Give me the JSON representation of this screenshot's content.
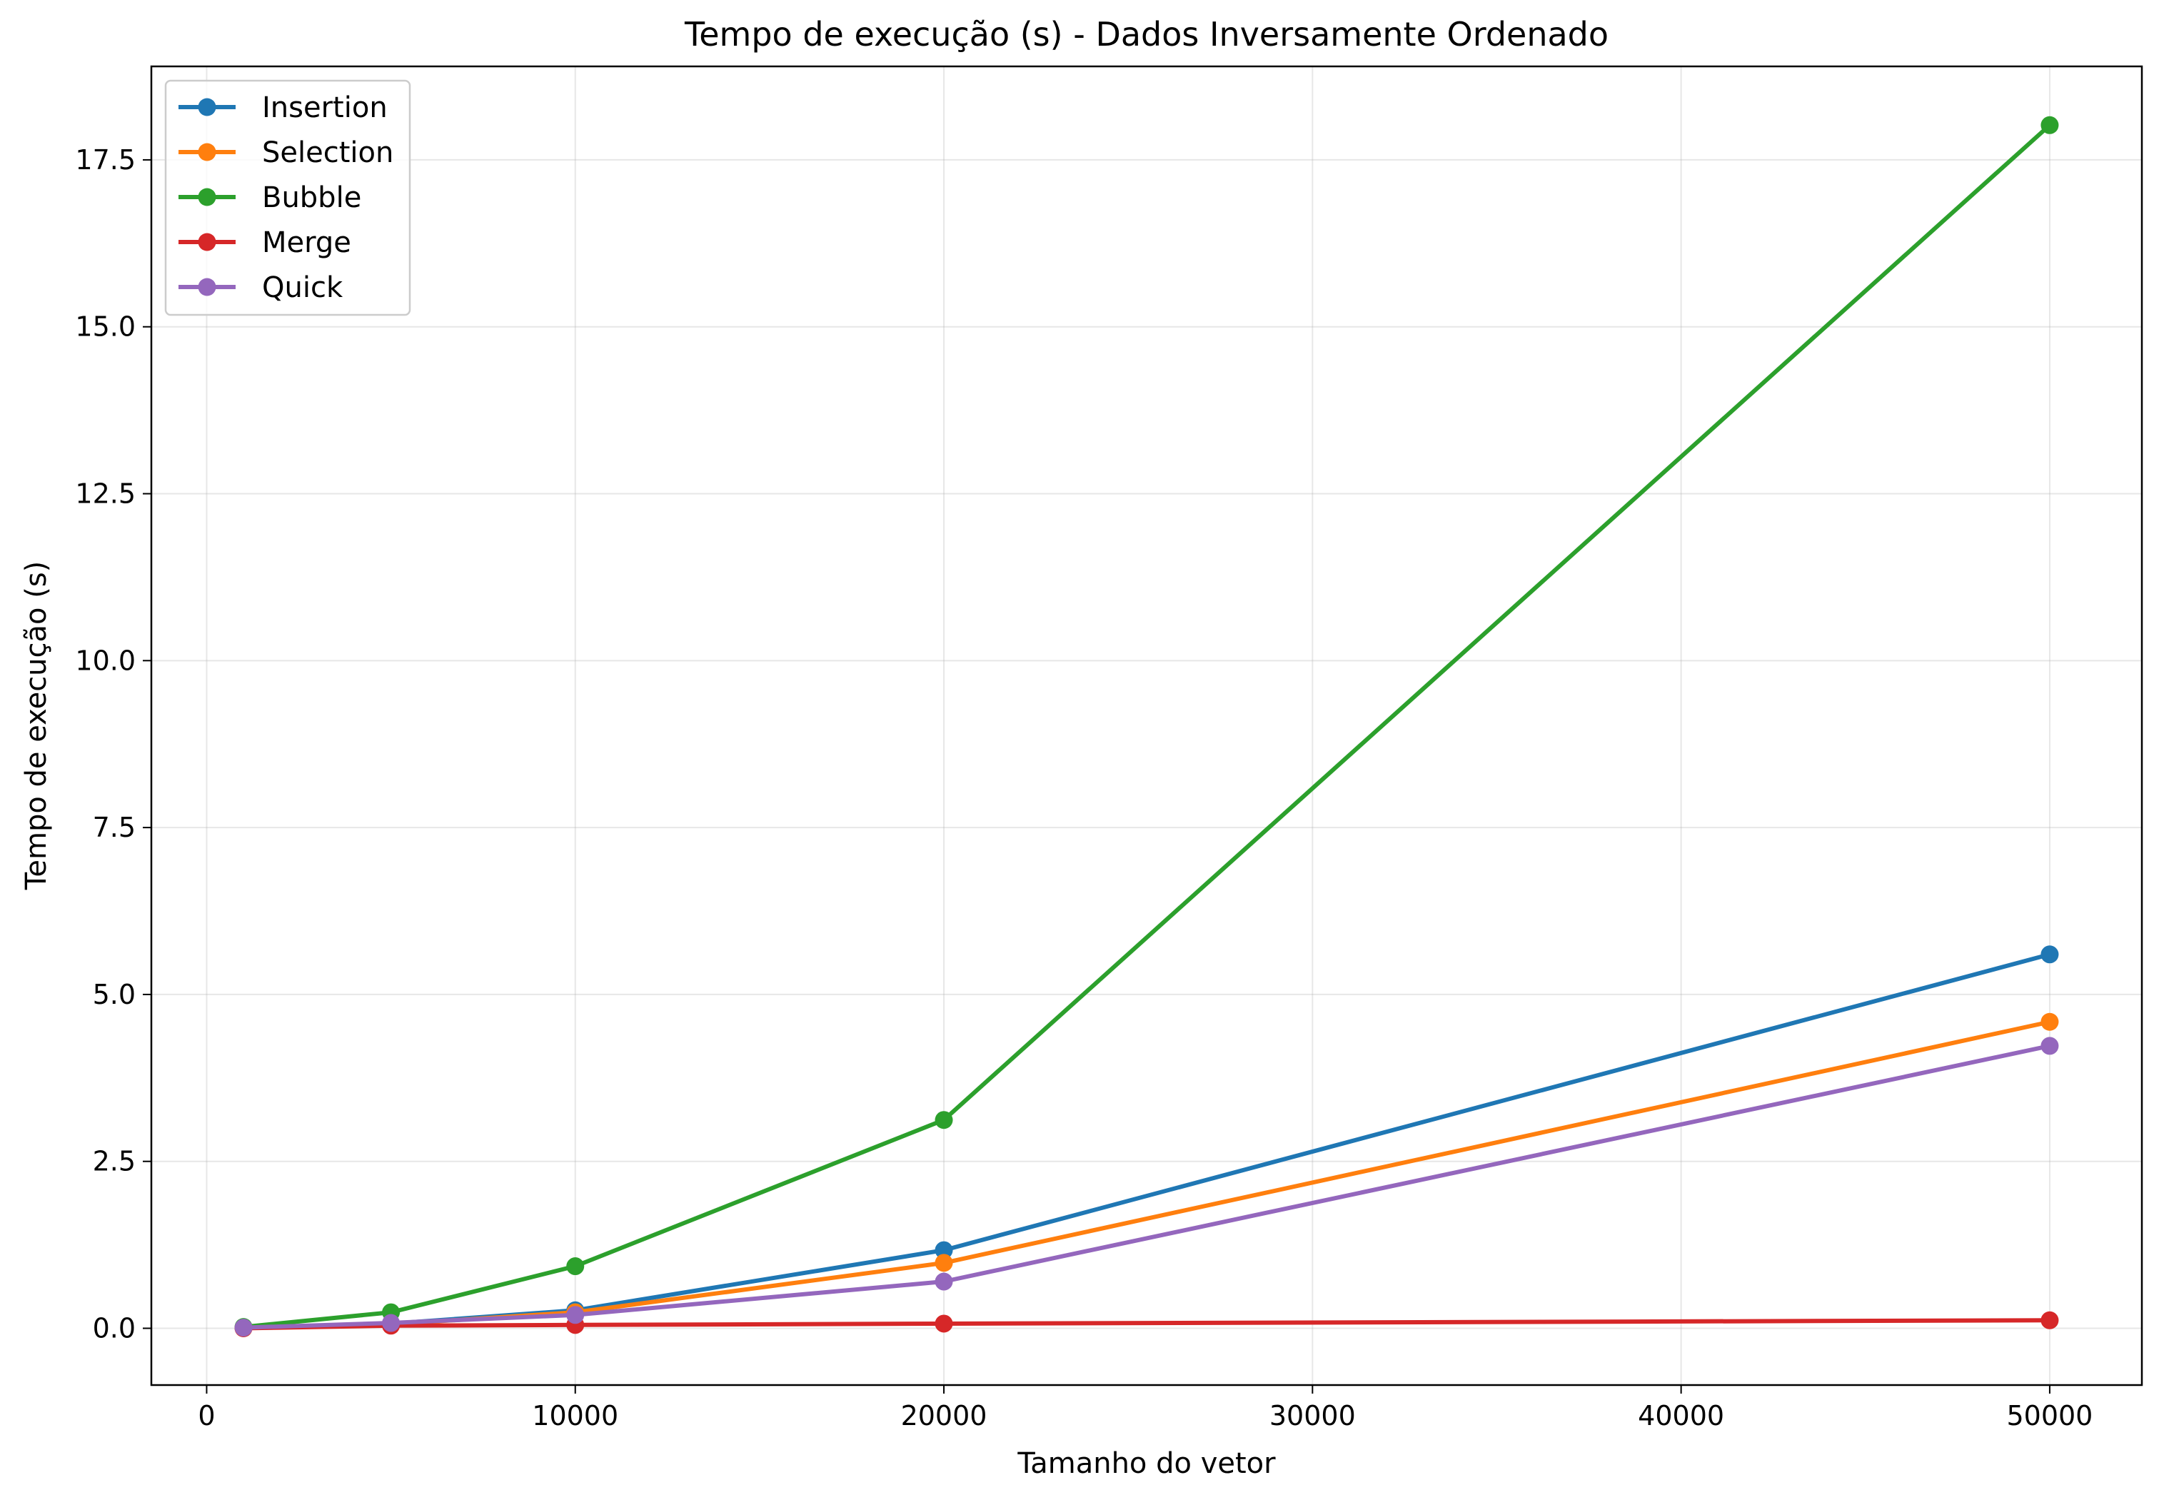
{
  "chart_data": {
    "type": "line",
    "title": "Tempo de execução (s) - Dados Inversamente Ordenado",
    "xlabel": "Tamanho do vetor",
    "ylabel": "Tempo de execução (s)",
    "x": [
      1000,
      5000,
      10000,
      20000,
      50000
    ],
    "xlim": [
      -1500,
      52500
    ],
    "ylim": [
      -0.85,
      18.9
    ],
    "xticks": [
      0,
      10000,
      20000,
      30000,
      40000,
      50000
    ],
    "xtick_labels": [
      "0",
      "10000",
      "20000",
      "30000",
      "40000",
      "50000"
    ],
    "yticks": [
      0.0,
      2.5,
      5.0,
      7.5,
      10.0,
      12.5,
      15.0,
      17.5
    ],
    "ytick_labels": [
      "0.0",
      "2.5",
      "5.0",
      "7.5",
      "10.0",
      "12.5",
      "15.0",
      "17.5"
    ],
    "grid": true,
    "legend_position": "top-left",
    "series": [
      {
        "name": "Insertion",
        "color": "#1f77b4",
        "values": [
          0.01,
          0.07,
          0.27,
          1.17,
          5.6
        ]
      },
      {
        "name": "Selection",
        "color": "#ff7f0e",
        "values": [
          0.01,
          0.06,
          0.24,
          0.98,
          4.59
        ]
      },
      {
        "name": "Bubble",
        "color": "#2ca02c",
        "values": [
          0.02,
          0.24,
          0.93,
          3.12,
          18.02
        ]
      },
      {
        "name": "Merge",
        "color": "#d62728",
        "values": [
          0.0,
          0.04,
          0.05,
          0.07,
          0.12
        ]
      },
      {
        "name": "Quick",
        "color": "#9467bd",
        "values": [
          0.01,
          0.08,
          0.2,
          0.7,
          4.23
        ]
      }
    ]
  }
}
